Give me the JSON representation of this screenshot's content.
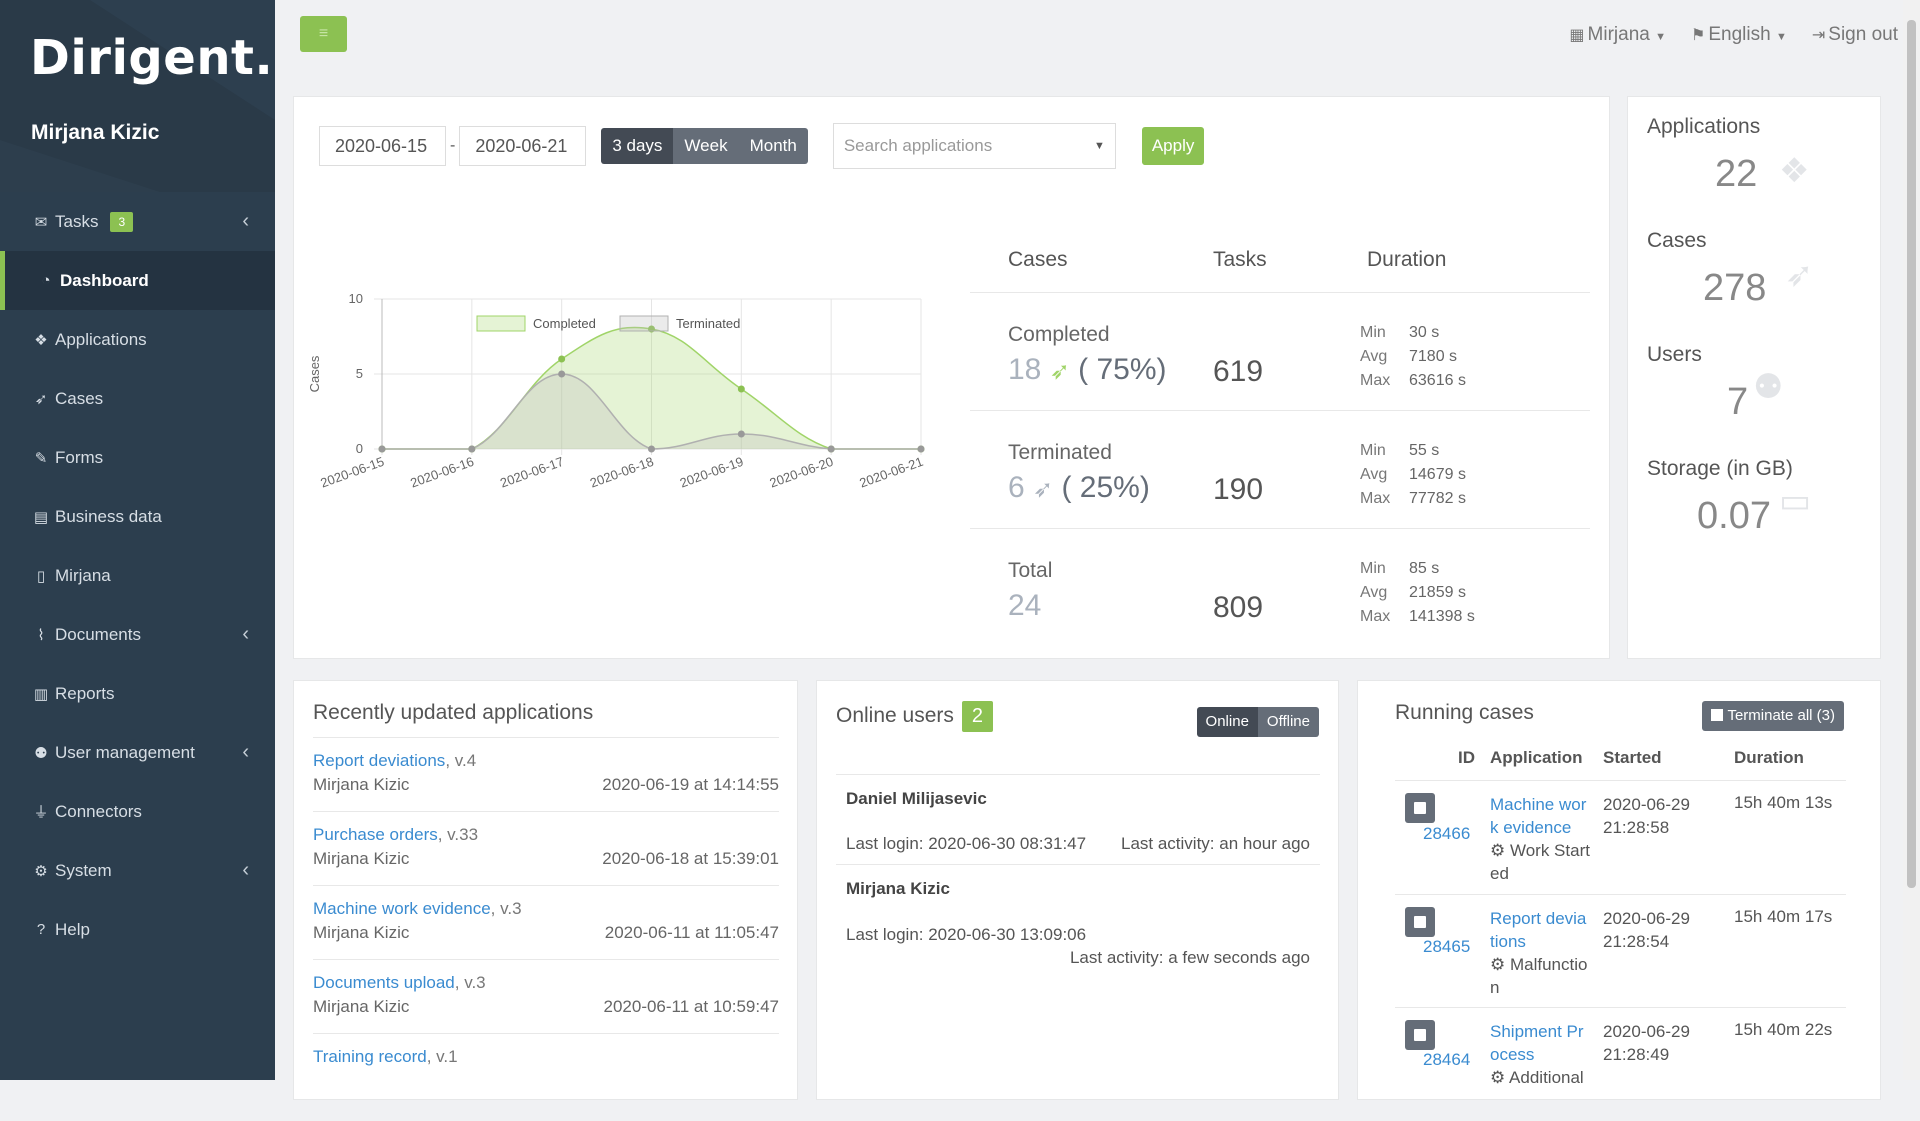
{
  "brand": {
    "logo": "Dirigent.io",
    "user": "Mirjana Kizic"
  },
  "sidebar": {
    "items": [
      {
        "label": "Tasks",
        "icon": "envelope-icon",
        "badge": "3"
      },
      {
        "label": "Dashboard",
        "icon": "dashboard-icon"
      },
      {
        "label": "Applications",
        "icon": "cubes-icon"
      },
      {
        "label": "Cases",
        "icon": "rocket-icon"
      },
      {
        "label": "Forms",
        "icon": "edit-icon"
      },
      {
        "label": "Business data",
        "icon": "database-icon"
      },
      {
        "label": "Mirjana",
        "icon": "file-icon"
      },
      {
        "label": "Documents",
        "icon": "paperclip-icon"
      },
      {
        "label": "Reports",
        "icon": "chart-icon"
      },
      {
        "label": "User management",
        "icon": "users-icon"
      },
      {
        "label": "Connectors",
        "icon": "plug-icon"
      },
      {
        "label": "System",
        "icon": "cogs-icon"
      },
      {
        "label": "Help",
        "icon": "question-icon"
      }
    ]
  },
  "topbar": {
    "user": "Mirjana",
    "language": "English",
    "signout": "Sign out"
  },
  "filters": {
    "date_from": "2020-06-15",
    "date_to": "2020-06-21",
    "separator": "-",
    "ranges": [
      "3 days",
      "Week",
      "Month"
    ],
    "search_placeholder": "Search applications",
    "apply": "Apply"
  },
  "chart_data": {
    "type": "area",
    "x": [
      "2020-06-15",
      "2020-06-16",
      "2020-06-17",
      "2020-06-18",
      "2020-06-19",
      "2020-06-20",
      "2020-06-21"
    ],
    "series": [
      {
        "name": "Completed",
        "values": [
          0,
          0,
          6,
          8,
          4,
          0,
          0
        ],
        "color": "#8cc152"
      },
      {
        "name": "Terminated",
        "values": [
          0,
          0,
          5,
          0,
          1,
          0,
          0
        ],
        "color": "#999999"
      }
    ],
    "ylabel": "Cases",
    "ylim": [
      0,
      10
    ],
    "yticks": [
      "10",
      "5",
      "0"
    ]
  },
  "stats": {
    "headers": [
      "Cases",
      "Tasks",
      "Duration"
    ],
    "rows": [
      {
        "label": "Completed",
        "count": "18",
        "pct": "( 75%)",
        "tasks": "619",
        "min": "30 s",
        "avg": "7180 s",
        "max": "63616 s"
      },
      {
        "label": "Terminated",
        "count": "6",
        "pct": "( 25%)",
        "tasks": "190",
        "min": "55 s",
        "avg": "14679 s",
        "max": "77782 s"
      },
      {
        "label": "Total",
        "count": "24",
        "pct": "",
        "tasks": "809",
        "min": "85 s",
        "avg": "21859 s",
        "max": "141398 s"
      }
    ],
    "min_label": "Min",
    "avg_label": "Avg",
    "max_label": "Max"
  },
  "summary": {
    "applications": {
      "label": "Applications",
      "value": "22"
    },
    "cases": {
      "label": "Cases",
      "value": "278"
    },
    "users": {
      "label": "Users",
      "value": "7"
    },
    "storage": {
      "label": "Storage (in GB)",
      "value": "0.07"
    }
  },
  "recent": {
    "title": "Recently updated applications",
    "items": [
      {
        "app": "Report deviations",
        "ver": ", v.4",
        "who": "Mirjana Kizic",
        "when": "2020-06-19 at 14:14:55"
      },
      {
        "app": "Purchase orders",
        "ver": ", v.33",
        "who": "Mirjana Kizic",
        "when": "2020-06-18 at 15:39:01"
      },
      {
        "app": "Machine work evidence",
        "ver": ", v.3",
        "who": "Mirjana Kizic",
        "when": "2020-06-11 at 11:05:47"
      },
      {
        "app": "Documents upload",
        "ver": ", v.3",
        "who": "Mirjana Kizic",
        "when": "2020-06-11 at 10:59:47"
      },
      {
        "app": "Training record",
        "ver": ", v.1",
        "who": "",
        "when": ""
      }
    ]
  },
  "online": {
    "title": "Online users",
    "count": "2",
    "toggle": [
      "Online",
      "Offline"
    ],
    "users": [
      {
        "name": "Daniel Milijasevic",
        "login": "Last login: 2020-06-30 08:31:47",
        "activity": "Last activity: an hour ago"
      },
      {
        "name": "Mirjana Kizic",
        "login": "Last login: 2020-06-30 13:09:06",
        "activity": "Last activity: a few seconds ago"
      }
    ]
  },
  "running": {
    "title": "Running cases",
    "terminate_all": "Terminate all (3)",
    "headers": [
      "ID",
      "Application",
      "Started",
      "Duration"
    ],
    "rows": [
      {
        "id": "28466",
        "app": "Machine work evidence",
        "status": "Work Started",
        "started": "2020-06-29 21:28:58",
        "duration": "15h 40m 13s"
      },
      {
        "id": "28465",
        "app": "Report deviations",
        "status": "Malfunction",
        "started": "2020-06-29 21:28:54",
        "duration": "15h 40m 17s"
      },
      {
        "id": "28464",
        "app": "Shipment Process",
        "status": "Additional",
        "started": "2020-06-29 21:28:49",
        "duration": "15h 40m 22s"
      }
    ]
  }
}
